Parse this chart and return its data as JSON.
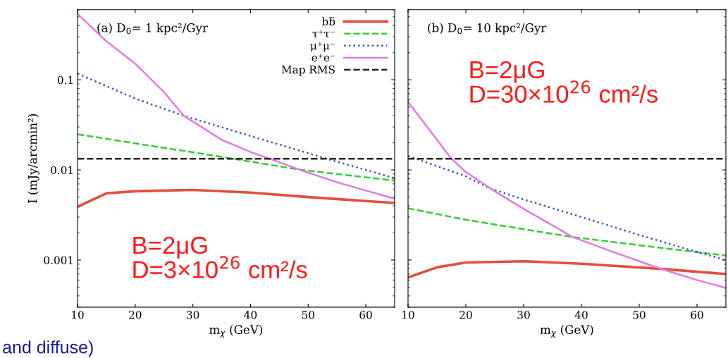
{
  "chart_data": [
    {
      "type": "line",
      "title": "(a) D$_{0}$= 1 kpc²/Gyr",
      "xlabel": "m$_{χ}$ (GeV)",
      "ylabel": "I (mJy/arcmin²)",
      "log": "y",
      "xlim": [
        10,
        65
      ],
      "ylim": [
        0.0003,
        0.6
      ],
      "xticks": [
        10,
        20,
        30,
        40,
        50,
        60
      ],
      "yticks": [
        0.001,
        0.01,
        0.1
      ],
      "grid": false,
      "legend": "top right",
      "series": [
        {
          "name": "bb̄",
          "color": "#e0503c",
          "line_style": "solid",
          "x": [
            10,
            15,
            20,
            30,
            40,
            50,
            65
          ],
          "values": [
            0.0039,
            0.0055,
            0.0058,
            0.006,
            0.0056,
            0.005,
            0.0043
          ]
        },
        {
          "name": "τ⁺τ⁻",
          "color": "#33cc33",
          "line_style": "dashed",
          "x": [
            10,
            20,
            30,
            37,
            48.4,
            65
          ],
          "values": [
            0.0249,
            0.0197,
            0.0157,
            0.0133,
            0.0101,
            0.0076
          ]
        },
        {
          "name": "μ⁺μ⁻",
          "color": "#3355cc",
          "line_style": "dotted",
          "x": [
            10,
            20,
            28.4,
            40,
            53.6,
            65
          ],
          "values": [
            0.117,
            0.062,
            0.04,
            0.0238,
            0.0131,
            0.0081
          ]
        },
        {
          "name": "e⁺e⁻",
          "color": "#e07be0",
          "line_style": "solid",
          "x": [
            10,
            15,
            20,
            25,
            28.4,
            35,
            40,
            45,
            48.4,
            55,
            60,
            65
          ],
          "values": [
            0.54,
            0.268,
            0.151,
            0.073,
            0.04,
            0.0216,
            0.0158,
            0.0122,
            0.0101,
            0.0073,
            0.0059,
            0.0048
          ]
        }
      ],
      "ref_lines": [
        {
          "axis": "y",
          "value": 0.0133,
          "label": "Map RMS",
          "color": "#222222",
          "line_style": "dashed"
        }
      ],
      "annotations": [
        "B=2μG\nD=3×10$^{26}$ cm²/s",
        "and diffuse)"
      ]
    },
    {
      "type": "line",
      "title": "(b) D$_{0}$= 10 kpc²/Gyr",
      "xlabel": "m$_{χ}$ (GeV)",
      "log": "y",
      "xlim": [
        10,
        65
      ],
      "ylim": [
        0.0003,
        0.6
      ],
      "xticks": [
        10,
        20,
        30,
        40,
        50,
        60
      ],
      "yticks": [
        0.001,
        0.01,
        0.1
      ],
      "grid": false,
      "tick_labels": "x",
      "series": [
        {
          "color": "#e0503c",
          "line_style": "solid",
          "x": [
            10,
            15,
            20,
            30,
            40,
            53.5,
            65
          ],
          "values": [
            0.00064,
            0.00083,
            0.00094,
            0.00097,
            0.00091,
            0.0008,
            0.0007
          ]
        },
        {
          "color": "#33cc33",
          "line_style": "dashed",
          "x": [
            10,
            20,
            30,
            38.5,
            50,
            65
          ],
          "values": [
            0.00375,
            0.0028,
            0.0022,
            0.0018,
            0.00146,
            0.00112
          ]
        },
        {
          "color": "#3355cc",
          "line_style": "dotted",
          "x": [
            10,
            20,
            24,
            30,
            40,
            50,
            60,
            65
          ],
          "values": [
            0.0143,
            0.0085,
            0.0063,
            0.0047,
            0.003,
            0.0019,
            0.00123,
            0.001
          ]
        },
        {
          "color": "#e07be0",
          "line_style": "solid",
          "x": [
            10,
            17.5,
            20,
            25,
            30,
            38.5,
            45,
            53.5,
            60,
            65
          ],
          "values": [
            0.0569,
            0.0133,
            0.0095,
            0.0058,
            0.0037,
            0.0018,
            0.00126,
            0.00081,
            0.0006,
            0.00049
          ]
        }
      ],
      "ref_lines": [
        {
          "axis": "y",
          "value": 0.0133,
          "color": "#222222",
          "line_style": "dashed"
        }
      ],
      "annotations": [
        "B=2μG\nD=30×10$^{26}$ cm²/s"
      ]
    }
  ]
}
